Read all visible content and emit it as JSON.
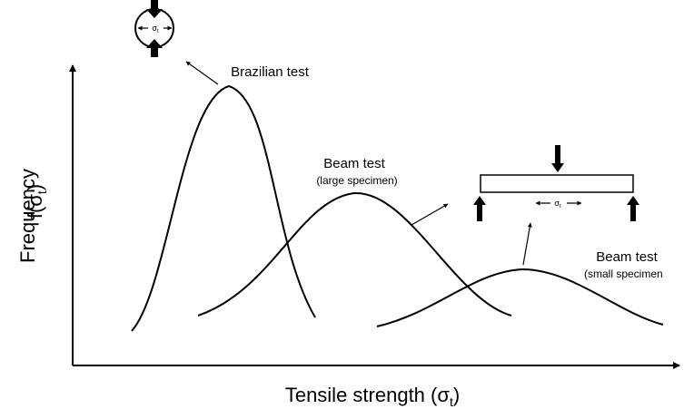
{
  "axes": {
    "y_label": {
      "line1": "Frequency",
      "line2": {
        "prefix": "f(σ",
        "subscript": "t",
        "suffix": ")"
      }
    },
    "x_label": {
      "prefix": "Tensile strength (σ",
      "subscript": "t",
      "suffix": ")"
    }
  },
  "curves": [
    {
      "label": "Brazilian test"
    },
    {
      "label": "Beam test",
      "sublabel": "(large specimen)"
    },
    {
      "label": "Beam test",
      "sublabel": "(small specimen"
    }
  ],
  "icons": {
    "circle_label": {
      "symbol": "σ",
      "subscript": "t"
    },
    "beam_label": {
      "symbol": "σ",
      "subscript": "t"
    }
  }
}
